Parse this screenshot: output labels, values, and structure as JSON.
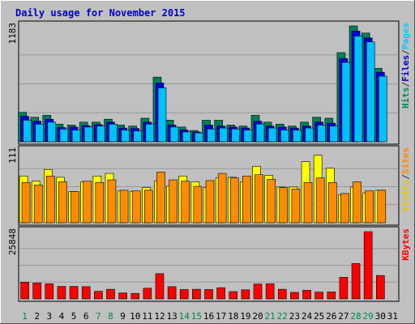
{
  "chart_data": {
    "type": "bar",
    "title": "Daily usage for November 2015",
    "categories": [
      "1",
      "2",
      "3",
      "4",
      "5",
      "6",
      "7",
      "8",
      "9",
      "10",
      "11",
      "12",
      "13",
      "14",
      "15",
      "16",
      "17",
      "18",
      "19",
      "20",
      "21",
      "22",
      "23",
      "24",
      "25",
      "26",
      "27",
      "28",
      "29",
      "30",
      "31"
    ],
    "weekend_days": [
      "1",
      "7",
      "8",
      "14",
      "15",
      "21",
      "22",
      "28",
      "29"
    ],
    "panels": [
      {
        "id": "top",
        "ymax": 1183,
        "ymax_label": "1183",
        "right_label": [
          "Pages",
          "/",
          "Files",
          "/",
          "Hits"
        ],
        "right_label_colors": [
          "#00ccff",
          "#333333",
          "#0000cc",
          "#333333",
          "#008866"
        ],
        "series": [
          {
            "name": "Hits",
            "color": "#007f5f",
            "values": [
              300,
              250,
              270,
              180,
              170,
              200,
              200,
              230,
              170,
              160,
              240,
              660,
              220,
              150,
              115,
              220,
              220,
              170,
              160,
              270,
              200,
              180,
              160,
              200,
              250,
              240,
              910,
              1183,
              1110,
              750,
              0
            ]
          },
          {
            "name": "Files",
            "color": "#0000dd",
            "values": [
              260,
              210,
              230,
              145,
              150,
              165,
              175,
              200,
              140,
              135,
              200,
              600,
              170,
              120,
              100,
              170,
              160,
              150,
              140,
              210,
              160,
              150,
              140,
              160,
              200,
              190,
              850,
              1130,
              1060,
              710,
              0
            ]
          },
          {
            "name": "Pages",
            "color": "#00c0ff",
            "values": [
              220,
              180,
              200,
              130,
              120,
              150,
              160,
              180,
              120,
              110,
              180,
              550,
              150,
              100,
              90,
              130,
              140,
              130,
              120,
              180,
              140,
              120,
              120,
              140,
              170,
              160,
              810,
              1080,
              1020,
              670,
              0
            ]
          }
        ]
      },
      {
        "id": "mid",
        "ymax": 111,
        "ymax_label": "111",
        "right_label": [
          "Sites",
          "/",
          "Visits"
        ],
        "right_label_colors": [
          "#ff8800",
          "#333333",
          "#e8c800"
        ],
        "series": [
          {
            "name": "Visits",
            "color": "#ffff00",
            "values": [
              72,
              64,
              82,
              70,
              48,
              63,
              72,
              76,
              49,
              48,
              54,
              64,
              57,
              72,
              63,
              54,
              69,
              70,
              63,
              87,
              73,
              55,
              55,
              94,
              104,
              84,
              43,
              55,
              46,
              50,
              0
            ]
          },
          {
            "name": "Sites",
            "color": "#ff8c00",
            "values": [
              62,
              58,
              72,
              63,
              48,
              64,
              62,
              66,
              50,
              49,
              50,
              78,
              66,
              64,
              56,
              65,
              76,
              69,
              72,
              74,
              67,
              54,
              52,
              62,
              69,
              62,
              45,
              63,
              49,
              50,
              0
            ]
          }
        ]
      },
      {
        "id": "bot",
        "ymax": 25848,
        "ymax_label": "25848",
        "right_label": [
          "KBytes"
        ],
        "right_label_colors": [
          "#ff0000"
        ],
        "series": [
          {
            "name": "KBytes",
            "color": "#ff0000",
            "values": [
              6400,
              6100,
              5800,
              4800,
              4800,
              4700,
              2900,
              3700,
              2300,
              2100,
              4100,
              9700,
              4700,
              3600,
              3700,
              3600,
              4300,
              2800,
              3500,
              5700,
              5800,
              3700,
              2500,
              3300,
              2600,
              2700,
              8300,
              13600,
              25848,
              9000,
              0
            ]
          }
        ]
      }
    ]
  }
}
